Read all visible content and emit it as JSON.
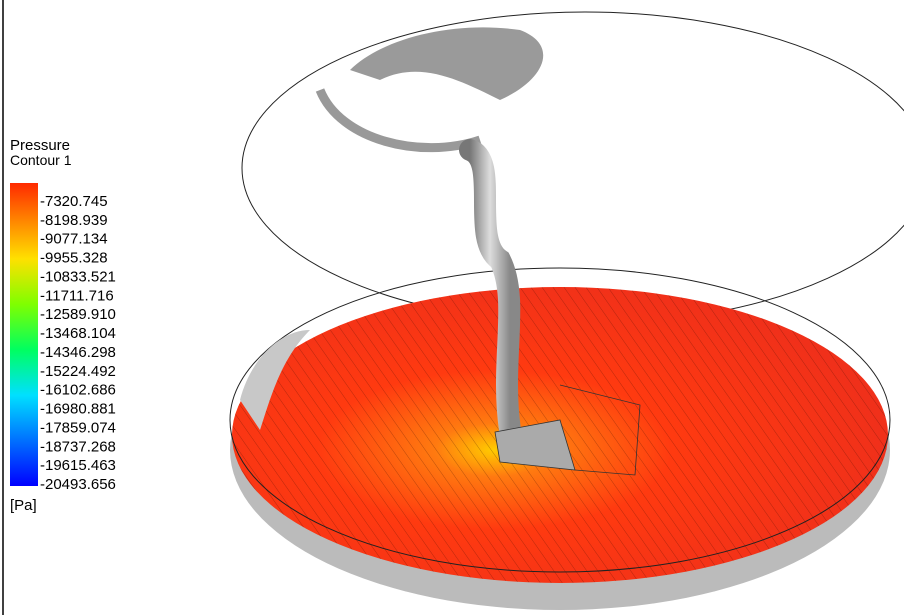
{
  "legend": {
    "title": "Pressure",
    "subtitle": "Contour 1",
    "labels": [
      "-7320.745",
      "-8198.939",
      "-9077.134",
      "-9955.328",
      "-10833.521",
      "-11711.716",
      "-12589.910",
      "-13468.104",
      "-14346.298",
      "-15224.492",
      "-16102.686",
      "-16980.881",
      "-17859.074",
      "-18737.268",
      "-19615.463",
      "-20493.656"
    ],
    "unit": "[Pa]"
  }
}
